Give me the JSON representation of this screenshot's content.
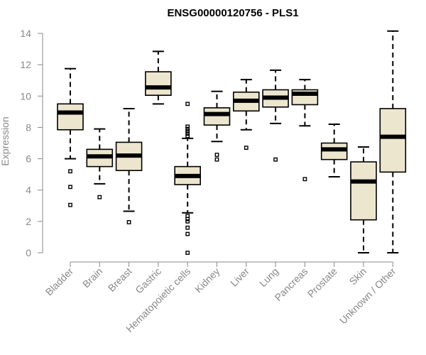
{
  "chart_data": {
    "type": "box",
    "title": "ENSG00000120756 - PLS1",
    "ylabel": "Expression",
    "ylim": [
      0,
      14.5
    ],
    "yticks": [
      0,
      2,
      4,
      6,
      8,
      10,
      12,
      14
    ],
    "colors": {
      "box_fill": "#ede6cf",
      "box_stroke": "#000000",
      "axis": "#888888"
    },
    "categories": [
      "Bladder",
      "Brain",
      "Breast",
      "Gastric",
      "Hematopoietic cells",
      "Kidney",
      "Liver",
      "Lung",
      "Pancreas",
      "Prostate",
      "Skin",
      "Unknown / Other"
    ],
    "boxes": [
      {
        "category": "Bladder",
        "min": 6.0,
        "q1": 7.85,
        "median": 8.95,
        "q3": 9.5,
        "max": 11.75,
        "outliers": [
          5.2,
          4.2,
          3.05
        ]
      },
      {
        "category": "Brain",
        "min": 4.4,
        "q1": 5.5,
        "median": 6.15,
        "q3": 6.6,
        "max": 7.9,
        "outliers": [
          3.55
        ]
      },
      {
        "category": "Breast",
        "min": 2.65,
        "q1": 5.25,
        "median": 6.2,
        "q3": 7.05,
        "max": 9.2,
        "outliers": [
          1.95
        ]
      },
      {
        "category": "Gastric",
        "min": 9.5,
        "q1": 10.05,
        "median": 10.55,
        "q3": 11.55,
        "max": 12.85,
        "outliers": []
      },
      {
        "category": "Hematopoietic cells",
        "min": 2.55,
        "q1": 4.35,
        "median": 4.9,
        "q3": 5.5,
        "max": 7.3,
        "outliers": [
          9.5,
          8.05,
          7.9,
          7.75,
          7.6,
          7.45,
          2.35,
          2.15,
          2.0,
          1.6,
          1.2,
          0.0
        ]
      },
      {
        "category": "Kidney",
        "min": 7.1,
        "q1": 8.15,
        "median": 8.85,
        "q3": 9.25,
        "max": 10.3,
        "outliers": [
          6.25,
          5.95
        ]
      },
      {
        "category": "Liver",
        "min": 7.85,
        "q1": 9.05,
        "median": 9.7,
        "q3": 10.25,
        "max": 11.05,
        "outliers": [
          6.7
        ]
      },
      {
        "category": "Lung",
        "min": 8.25,
        "q1": 9.3,
        "median": 9.9,
        "q3": 10.4,
        "max": 11.65,
        "outliers": [
          5.95
        ]
      },
      {
        "category": "Pancreas",
        "min": 8.1,
        "q1": 9.45,
        "median": 10.15,
        "q3": 10.4,
        "max": 11.05,
        "outliers": [
          4.7
        ]
      },
      {
        "category": "Prostate",
        "min": 4.85,
        "q1": 5.95,
        "median": 6.6,
        "q3": 7.0,
        "max": 8.2,
        "outliers": []
      },
      {
        "category": "Skin",
        "min": 0.0,
        "q1": 2.1,
        "median": 4.55,
        "q3": 5.8,
        "max": 6.75,
        "outliers": []
      },
      {
        "category": "Unknown / Other",
        "min": 0.0,
        "q1": 5.15,
        "median": 7.4,
        "q3": 9.2,
        "max": 14.15,
        "outliers": []
      }
    ]
  }
}
